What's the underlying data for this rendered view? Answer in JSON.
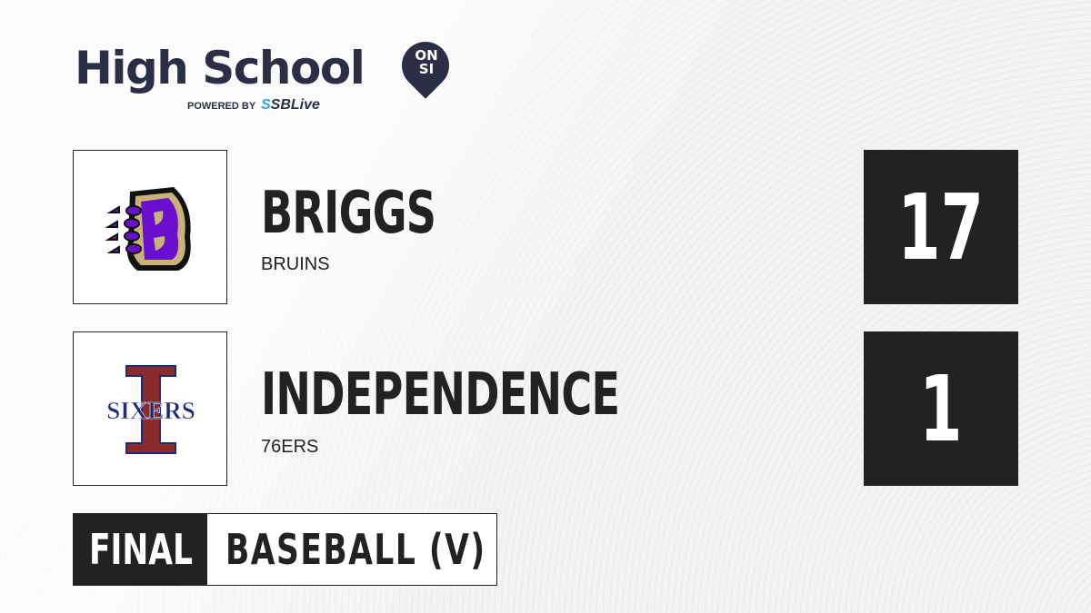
{
  "brand": {
    "title": "High School",
    "badge_line1": "ON",
    "badge_line2": "SI",
    "powered_by": "POWERED BY",
    "partner_prefix": "S",
    "partner": "SBLive"
  },
  "teams": [
    {
      "name": "BRIGGS",
      "mascot": "BRUINS",
      "score": "17",
      "logo_text": "B",
      "colors": {
        "primary": "#6a0fd0",
        "secondary": "#c8b27a"
      }
    },
    {
      "name": "INDEPENDENCE",
      "mascot": "76ERS",
      "score": "1",
      "logo_text": "SIXERS",
      "colors": {
        "primary": "#8b2a2a",
        "secondary": "#1c2b7a"
      }
    }
  ],
  "footer": {
    "status": "FINAL",
    "sport": "BASEBALL (V)"
  }
}
